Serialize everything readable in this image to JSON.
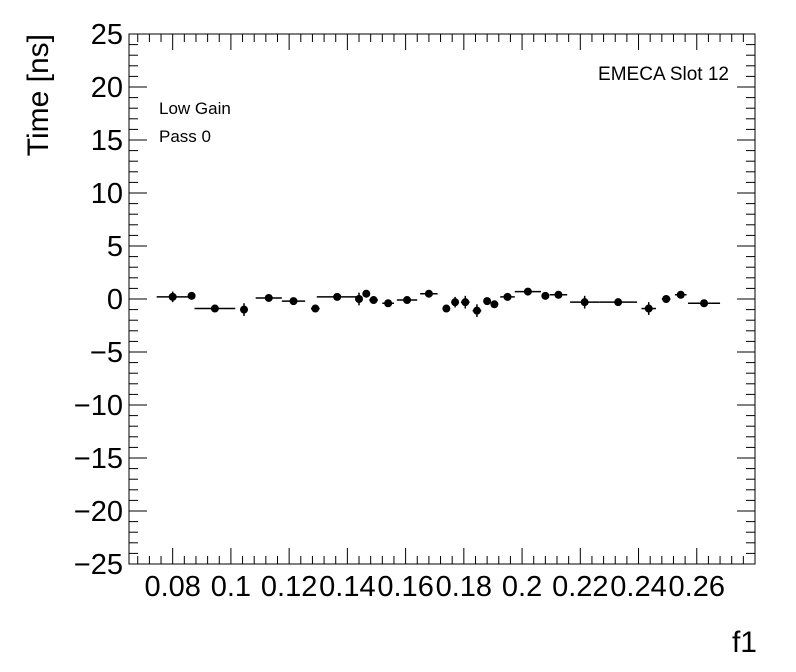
{
  "chart_data": {
    "type": "scatter",
    "xlabel": "f1",
    "ylabel": "Time [ns]",
    "xlim": [
      0.065,
      0.28
    ],
    "ylim": [
      -25,
      25
    ],
    "xticks": [
      0.08,
      0.1,
      0.12,
      0.14,
      0.16,
      0.18,
      0.2,
      0.22,
      0.24,
      0.26
    ],
    "xtick_labels": [
      "0.08",
      "0.1",
      "0.12",
      "0.14",
      "0.16",
      "0.18",
      "0.2",
      "0.22",
      "0.24",
      "0.26"
    ],
    "yticks": [
      -25,
      -20,
      -15,
      -10,
      -5,
      0,
      5,
      10,
      15,
      20,
      25
    ],
    "ytick_labels": [
      "−25",
      "−20",
      "−15",
      "−10",
      "−5",
      "0",
      "5",
      "10",
      "15",
      "20",
      "25"
    ],
    "annotations": {
      "slot": "EMECA Slot 12",
      "gain": "Low Gain",
      "pass": "Pass 0"
    },
    "points": [
      {
        "x": 0.08,
        "y": 0.2,
        "xerr": 0.0055,
        "yerr": 0.5
      },
      {
        "x": 0.0865,
        "y": 0.3,
        "xerr": 0.001,
        "yerr": 0.3
      },
      {
        "x": 0.0945,
        "y": -0.9,
        "xerr": 0.007,
        "yerr": 0.3
      },
      {
        "x": 0.1045,
        "y": -1.0,
        "xerr": 0.001,
        "yerr": 0.6
      },
      {
        "x": 0.113,
        "y": 0.1,
        "xerr": 0.0045,
        "yerr": 0.3
      },
      {
        "x": 0.1215,
        "y": -0.2,
        "xerr": 0.004,
        "yerr": 0.3
      },
      {
        "x": 0.129,
        "y": -0.9,
        "xerr": 0.0015,
        "yerr": 0.3
      },
      {
        "x": 0.1365,
        "y": 0.2,
        "xerr": 0.007,
        "yerr": 0.3
      },
      {
        "x": 0.144,
        "y": 0.0,
        "xerr": 0.001,
        "yerr": 0.6
      },
      {
        "x": 0.1465,
        "y": 0.5,
        "xerr": 0.001,
        "yerr": 0.3
      },
      {
        "x": 0.149,
        "y": -0.1,
        "xerr": 0.0015,
        "yerr": 0.3
      },
      {
        "x": 0.154,
        "y": -0.4,
        "xerr": 0.002,
        "yerr": 0.3
      },
      {
        "x": 0.1605,
        "y": -0.1,
        "xerr": 0.0035,
        "yerr": 0.3
      },
      {
        "x": 0.168,
        "y": 0.5,
        "xerr": 0.003,
        "yerr": 0.3
      },
      {
        "x": 0.174,
        "y": -0.9,
        "xerr": 0.001,
        "yerr": 0.3
      },
      {
        "x": 0.177,
        "y": -0.3,
        "xerr": 0.001,
        "yerr": 0.5
      },
      {
        "x": 0.1805,
        "y": -0.3,
        "xerr": 0.0015,
        "yerr": 0.6
      },
      {
        "x": 0.1845,
        "y": -1.1,
        "xerr": 0.0015,
        "yerr": 0.6
      },
      {
        "x": 0.188,
        "y": -0.2,
        "xerr": 0.001,
        "yerr": 0.3
      },
      {
        "x": 0.1905,
        "y": -0.5,
        "xerr": 0.001,
        "yerr": 0.3
      },
      {
        "x": 0.195,
        "y": 0.2,
        "xerr": 0.0025,
        "yerr": 0.3
      },
      {
        "x": 0.202,
        "y": 0.7,
        "xerr": 0.0045,
        "yerr": 0.3
      },
      {
        "x": 0.208,
        "y": 0.3,
        "xerr": 0.001,
        "yerr": 0.3
      },
      {
        "x": 0.2125,
        "y": 0.4,
        "xerr": 0.003,
        "yerr": 0.3
      },
      {
        "x": 0.2215,
        "y": -0.3,
        "xerr": 0.005,
        "yerr": 0.6
      },
      {
        "x": 0.233,
        "y": -0.3,
        "xerr": 0.0065,
        "yerr": 0.3
      },
      {
        "x": 0.2435,
        "y": -0.9,
        "xerr": 0.0025,
        "yerr": 0.6
      },
      {
        "x": 0.2495,
        "y": 0.0,
        "xerr": 0.0015,
        "yerr": 0.3
      },
      {
        "x": 0.2545,
        "y": 0.4,
        "xerr": 0.002,
        "yerr": 0.3
      },
      {
        "x": 0.2625,
        "y": -0.4,
        "xerr": 0.0055,
        "yerr": 0.3
      }
    ]
  }
}
